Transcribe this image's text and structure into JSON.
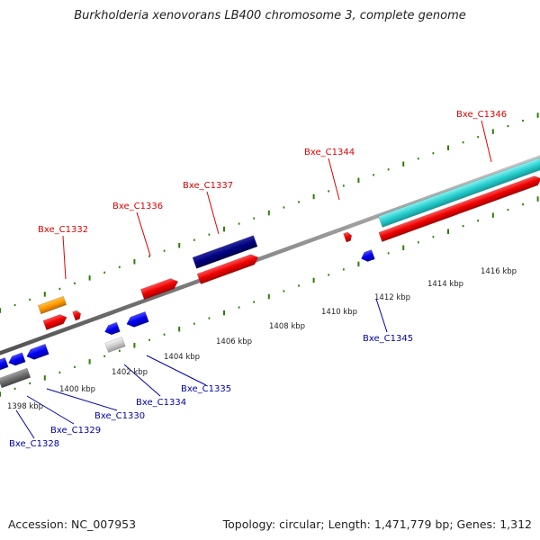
{
  "title": "Burkholderia xenovorans LB400 chromosome 3, complete genome",
  "footer": {
    "accession": "Accession: NC_007953",
    "summary": "Topology: circular; Length: 1,471,779 bp; Genes: 1,312"
  },
  "colors": {
    "label_forward": "#dd0000",
    "label_reverse": "#0000aa",
    "backbone": "#8c8c8c",
    "tick": "#2e7d00"
  },
  "ruler_labels": [
    {
      "kbp": 1398,
      "text": "1398 kbp"
    },
    {
      "kbp": 1400,
      "text": "1400 kbp"
    },
    {
      "kbp": 1402,
      "text": "1402 kbp"
    },
    {
      "kbp": 1404,
      "text": "1404 kbp"
    },
    {
      "kbp": 1406,
      "text": "1406 kbp"
    },
    {
      "kbp": 1408,
      "text": "1408 kbp"
    },
    {
      "kbp": 1410,
      "text": "1410 kbp"
    },
    {
      "kbp": 1412,
      "text": "1412 kbp"
    },
    {
      "kbp": 1414,
      "text": "1414 kbp"
    },
    {
      "kbp": 1416,
      "text": "1416 kbp"
    }
  ],
  "forward_genes": [
    {
      "label": "Bxe_C1332"
    },
    {
      "label": "Bxe_C1336"
    },
    {
      "label": "Bxe_C1337"
    },
    {
      "label": "Bxe_C1344"
    },
    {
      "label": "Bxe_C1346"
    }
  ],
  "reverse_genes": [
    {
      "label": "Bxe_C1345"
    },
    {
      "label": "Bxe_C1335"
    },
    {
      "label": "Bxe_C1334"
    },
    {
      "label": "Bxe_C1330"
    },
    {
      "label": "Bxe_C1329"
    },
    {
      "label": "Bxe_C1328"
    }
  ]
}
